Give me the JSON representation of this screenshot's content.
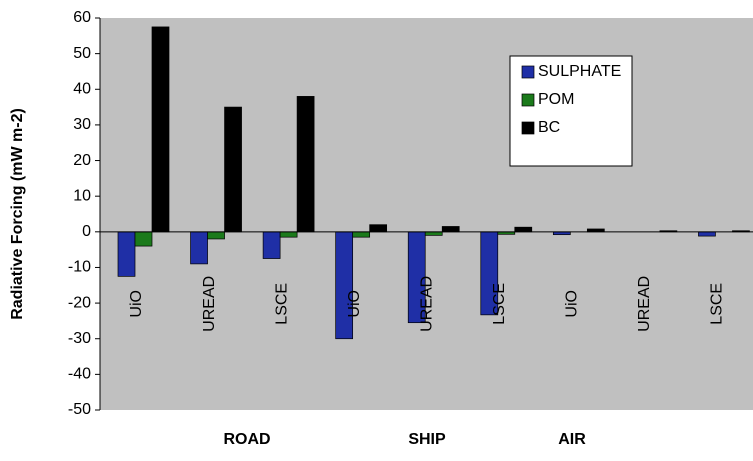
{
  "chart_data": {
    "type": "bar",
    "ylabel": "Radiative Forcing (mW m-2)",
    "categories": [
      "UiO",
      "UREAD",
      "LSCE",
      "UiO",
      "UREAD",
      "LSCE",
      "UiO",
      "UREAD",
      "LSCE"
    ],
    "group_labels": [
      "ROAD",
      "SHIP",
      "AIR"
    ],
    "series": [
      {
        "name": "SULPHATE",
        "color": "#1f2fa6",
        "values": [
          -12.5,
          -9,
          -7.5,
          -30,
          -25.5,
          -23.3,
          -0.8,
          0,
          -1.2
        ]
      },
      {
        "name": "POM",
        "color": "#1b7a1b",
        "values": [
          -4,
          -2,
          -1.5,
          -1.5,
          -1,
          -0.7,
          0,
          0,
          0
        ]
      },
      {
        "name": "BC",
        "color": "#000000",
        "values": [
          57.5,
          35,
          38,
          2,
          1.5,
          1.3,
          0.8,
          0.3,
          0.3
        ]
      }
    ],
    "ylim": [
      -50,
      60
    ],
    "yticks": [
      -50,
      -40,
      -30,
      -20,
      -10,
      0,
      10,
      20,
      30,
      40,
      50,
      60
    ],
    "background": "#c0c0c0"
  }
}
